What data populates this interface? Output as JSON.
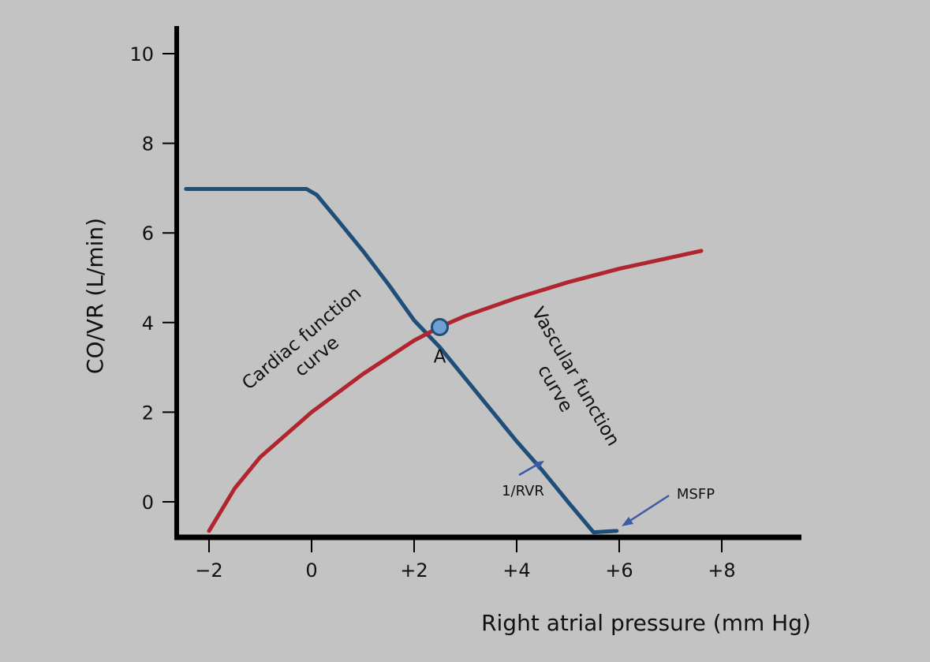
{
  "chart_data": {
    "type": "line",
    "title": "",
    "xlabel": "Right atrial pressure (mm Hg)",
    "ylabel": "CO/VR (L/min)",
    "x_ticks": [
      {
        "value": -2,
        "label": "−2"
      },
      {
        "value": 0,
        "label": "0"
      },
      {
        "value": 2,
        "label": "+2"
      },
      {
        "value": 4,
        "label": "+4"
      },
      {
        "value": 6,
        "label": "+6"
      },
      {
        "value": 8,
        "label": "+8"
      }
    ],
    "y_ticks": [
      {
        "value": 0,
        "label": "0"
      },
      {
        "value": 2,
        "label": "2"
      },
      {
        "value": 4,
        "label": "4"
      },
      {
        "value": 6,
        "label": "6"
      },
      {
        "value": 8,
        "label": "8"
      },
      {
        "value": 10,
        "label": "10"
      }
    ],
    "xlim": [
      -2.5,
      9.5
    ],
    "ylim": [
      -0.65,
      10
    ],
    "grid": false,
    "series": [
      {
        "color": "#1f4e79",
        "points": [
          [
            -2.45,
            6.98
          ],
          [
            -0.1,
            6.98
          ],
          [
            0.1,
            6.85
          ],
          [
            0.5,
            6.3
          ],
          [
            1.0,
            5.6
          ],
          [
            1.5,
            4.85
          ],
          [
            2.0,
            4.05
          ],
          [
            2.5,
            3.45
          ],
          [
            3.0,
            2.75
          ],
          [
            3.5,
            2.05
          ],
          [
            4.0,
            1.35
          ],
          [
            4.5,
            0.7
          ],
          [
            5.0,
            0.0
          ],
          [
            5.5,
            -0.68
          ],
          [
            5.95,
            -0.65
          ]
        ]
      },
      {
        "color": "#b0252e",
        "points": [
          [
            -2.0,
            -0.65
          ],
          [
            -1.5,
            0.3
          ],
          [
            -1.0,
            1.0
          ],
          [
            0.0,
            2.0
          ],
          [
            1.0,
            2.85
          ],
          [
            2.0,
            3.6
          ],
          [
            2.5,
            3.9
          ],
          [
            3.0,
            4.15
          ],
          [
            4.0,
            4.55
          ],
          [
            5.0,
            4.9
          ],
          [
            6.0,
            5.2
          ],
          [
            7.0,
            5.45
          ],
          [
            7.6,
            5.6
          ]
        ]
      }
    ],
    "point": {
      "x": 2.5,
      "y": 3.9,
      "label": "A"
    },
    "annotations": {
      "cardiac_line1": "Cardiac function",
      "cardiac_line2": "curve",
      "vascular_line1": "Vascular function",
      "vascular_line2": "curve",
      "rvr_label": "1/RVR",
      "msfp_label": "MSFP"
    },
    "colors": {
      "axis": "#000000",
      "arrow": "#3b5ba5",
      "point_fill": "#6f9ed3",
      "point_stroke": "#1f4e79"
    }
  }
}
